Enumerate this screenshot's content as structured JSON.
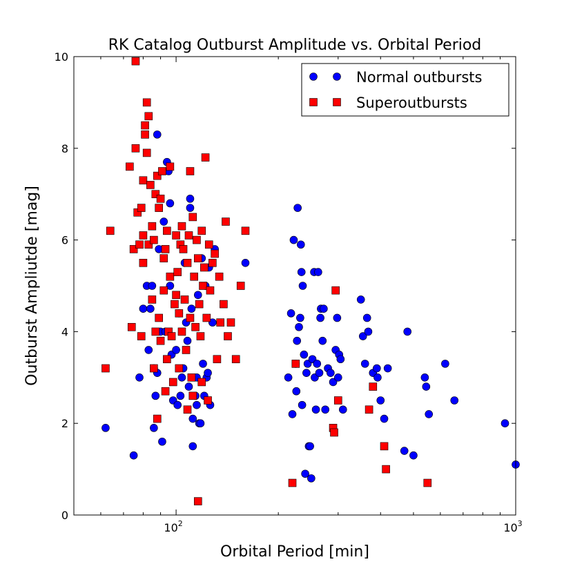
{
  "chart_data": {
    "type": "scatter",
    "title": "RK Catalog Outburst Amplitude vs. Orbital Period",
    "xlabel": "Orbital Period [min]",
    "ylabel": "Outburst Ampliutde [mag]",
    "xscale": "log",
    "xlim": [
      50,
      1000
    ],
    "ylim": [
      0,
      10
    ],
    "x_ticks": [
      {
        "value": 100,
        "base": "10",
        "exp": "2"
      },
      {
        "value": 1000,
        "base": "10",
        "exp": "3"
      }
    ],
    "y_ticks": [
      0,
      2,
      4,
      6,
      8,
      10
    ],
    "legend": {
      "position": "top-right"
    },
    "series": [
      {
        "name": "Normal outbursts",
        "marker": "circle",
        "color": "#0000ff",
        "points": [
          [
            62,
            1.9
          ],
          [
            75,
            1.3
          ],
          [
            78,
            3.0
          ],
          [
            80,
            4.5
          ],
          [
            82,
            5.0
          ],
          [
            83,
            3.6
          ],
          [
            84,
            4.5
          ],
          [
            85,
            5.0
          ],
          [
            86,
            3.2
          ],
          [
            86,
            1.9
          ],
          [
            87,
            2.6
          ],
          [
            88,
            8.3
          ],
          [
            88,
            3.1
          ],
          [
            89,
            5.8
          ],
          [
            90,
            4.0
          ],
          [
            91,
            1.6
          ],
          [
            92,
            6.4
          ],
          [
            93,
            4.0
          ],
          [
            94,
            7.7
          ],
          [
            95,
            7.5
          ],
          [
            96,
            5.0
          ],
          [
            96,
            6.8
          ],
          [
            97,
            3.5
          ],
          [
            98,
            2.5
          ],
          [
            100,
            3.6
          ],
          [
            101,
            2.4
          ],
          [
            102,
            4.4
          ],
          [
            103,
            2.6
          ],
          [
            104,
            3.0
          ],
          [
            105,
            3.2
          ],
          [
            106,
            5.5
          ],
          [
            107,
            4.2
          ],
          [
            108,
            3.8
          ],
          [
            109,
            2.8
          ],
          [
            110,
            6.7
          ],
          [
            110,
            6.9
          ],
          [
            111,
            4.5
          ],
          [
            112,
            2.1
          ],
          [
            112,
            1.5
          ],
          [
            114,
            2.6
          ],
          [
            115,
            3.0
          ],
          [
            115,
            2.4
          ],
          [
            116,
            4.8
          ],
          [
            117,
            2.0
          ],
          [
            118,
            2.0
          ],
          [
            119,
            5.6
          ],
          [
            120,
            3.3
          ],
          [
            121,
            2.6
          ],
          [
            122,
            5.0
          ],
          [
            123,
            3.0
          ],
          [
            124,
            3.1
          ],
          [
            125,
            5.4
          ],
          [
            126,
            2.4
          ],
          [
            128,
            4.2
          ],
          [
            130,
            5.8
          ],
          [
            160,
            5.5
          ],
          [
            214,
            3.0
          ],
          [
            218,
            4.4
          ],
          [
            220,
            2.2
          ],
          [
            222,
            6.0
          ],
          [
            225,
            3.3
          ],
          [
            226,
            2.7
          ],
          [
            227,
            3.8
          ],
          [
            228,
            6.7
          ],
          [
            230,
            4.1
          ],
          [
            232,
            4.3
          ],
          [
            233,
            5.9
          ],
          [
            234,
            5.3
          ],
          [
            235,
            2.4
          ],
          [
            236,
            5.0
          ],
          [
            238,
            3.5
          ],
          [
            240,
            0.9
          ],
          [
            242,
            3.1
          ],
          [
            244,
            3.3
          ],
          [
            246,
            1.5
          ],
          [
            248,
            1.5
          ],
          [
            250,
            0.8
          ],
          [
            252,
            3.4
          ],
          [
            255,
            5.3
          ],
          [
            256,
            3.0
          ],
          [
            258,
            2.3
          ],
          [
            260,
            3.3
          ],
          [
            262,
            5.3
          ],
          [
            264,
            3.1
          ],
          [
            266,
            4.3
          ],
          [
            267,
            4.5
          ],
          [
            270,
            3.8
          ],
          [
            272,
            4.5
          ],
          [
            275,
            2.3
          ],
          [
            280,
            3.2
          ],
          [
            285,
            3.1
          ],
          [
            290,
            2.9
          ],
          [
            295,
            3.6
          ],
          [
            298,
            4.3
          ],
          [
            300,
            3.0
          ],
          [
            302,
            3.5
          ],
          [
            305,
            3.4
          ],
          [
            310,
            2.3
          ],
          [
            350,
            4.7
          ],
          [
            355,
            3.9
          ],
          [
            360,
            3.3
          ],
          [
            365,
            4.3
          ],
          [
            368,
            4.0
          ],
          [
            380,
            3.1
          ],
          [
            390,
            3.2
          ],
          [
            392,
            3.0
          ],
          [
            400,
            2.5
          ],
          [
            410,
            2.1
          ],
          [
            420,
            3.2
          ],
          [
            470,
            1.4
          ],
          [
            480,
            4.0
          ],
          [
            500,
            1.3
          ],
          [
            540,
            3.0
          ],
          [
            545,
            2.8
          ],
          [
            555,
            2.2
          ],
          [
            620,
            3.3
          ],
          [
            660,
            2.5
          ],
          [
            930,
            2.0
          ],
          [
            1000,
            1.1
          ]
        ]
      },
      {
        "name": "Superoutbursts",
        "marker": "square",
        "color": "#ff0000",
        "points": [
          [
            62,
            3.2
          ],
          [
            64,
            6.2
          ],
          [
            73,
            7.6
          ],
          [
            74,
            4.1
          ],
          [
            75,
            5.8
          ],
          [
            76,
            8.0
          ],
          [
            76,
            9.9
          ],
          [
            77,
            6.6
          ],
          [
            78,
            5.9
          ],
          [
            79,
            6.7
          ],
          [
            79,
            3.9
          ],
          [
            80,
            5.5
          ],
          [
            80,
            6.1
          ],
          [
            80,
            7.3
          ],
          [
            81,
            8.3
          ],
          [
            81,
            8.5
          ],
          [
            82,
            9.0
          ],
          [
            82,
            7.9
          ],
          [
            83,
            8.7
          ],
          [
            83,
            5.9
          ],
          [
            84,
            7.2
          ],
          [
            85,
            6.3
          ],
          [
            85,
            4.7
          ],
          [
            86,
            6.0
          ],
          [
            86,
            3.2
          ],
          [
            87,
            7.0
          ],
          [
            87,
            4.0
          ],
          [
            88,
            7.4
          ],
          [
            88,
            2.1
          ],
          [
            89,
            6.7
          ],
          [
            89,
            4.3
          ],
          [
            90,
            6.9
          ],
          [
            90,
            3.8
          ],
          [
            91,
            7.5
          ],
          [
            92,
            5.6
          ],
          [
            92,
            4.9
          ],
          [
            93,
            5.8
          ],
          [
            93,
            2.7
          ],
          [
            94,
            6.2
          ],
          [
            94,
            3.4
          ],
          [
            95,
            4.0
          ],
          [
            96,
            7.6
          ],
          [
            96,
            5.2
          ],
          [
            97,
            3.9
          ],
          [
            98,
            2.9
          ],
          [
            99,
            4.6
          ],
          [
            100,
            4.8
          ],
          [
            100,
            6.1
          ],
          [
            101,
            5.3
          ],
          [
            102,
            4.4
          ],
          [
            102,
            3.2
          ],
          [
            103,
            5.9
          ],
          [
            104,
            6.3
          ],
          [
            104,
            4.0
          ],
          [
            105,
            5.8
          ],
          [
            106,
            4.7
          ],
          [
            107,
            3.6
          ],
          [
            108,
            5.5
          ],
          [
            108,
            2.3
          ],
          [
            109,
            6.1
          ],
          [
            110,
            4.3
          ],
          [
            110,
            7.5
          ],
          [
            111,
            3.0
          ],
          [
            112,
            6.5
          ],
          [
            112,
            2.6
          ],
          [
            113,
            5.2
          ],
          [
            114,
            4.1
          ],
          [
            115,
            6.0
          ],
          [
            116,
            5.6
          ],
          [
            116,
            0.3
          ],
          [
            117,
            4.6
          ],
          [
            118,
            3.9
          ],
          [
            119,
            6.2
          ],
          [
            119,
            2.9
          ],
          [
            120,
            5.0
          ],
          [
            121,
            5.4
          ],
          [
            122,
            7.8
          ],
          [
            123,
            4.3
          ],
          [
            124,
            2.5
          ],
          [
            125,
            5.9
          ],
          [
            126,
            4.9
          ],
          [
            128,
            5.5
          ],
          [
            130,
            5.7
          ],
          [
            132,
            3.4
          ],
          [
            134,
            5.2
          ],
          [
            135,
            4.2
          ],
          [
            138,
            4.6
          ],
          [
            140,
            6.4
          ],
          [
            142,
            3.9
          ],
          [
            145,
            4.2
          ],
          [
            150,
            3.4
          ],
          [
            155,
            5.0
          ],
          [
            160,
            6.2
          ],
          [
            220,
            0.7
          ],
          [
            225,
            3.3
          ],
          [
            290,
            1.9
          ],
          [
            292,
            1.8
          ],
          [
            295,
            4.9
          ],
          [
            300,
            2.5
          ],
          [
            370,
            2.3
          ],
          [
            380,
            2.8
          ],
          [
            410,
            1.5
          ],
          [
            415,
            1.0
          ],
          [
            550,
            0.7
          ]
        ]
      }
    ]
  }
}
